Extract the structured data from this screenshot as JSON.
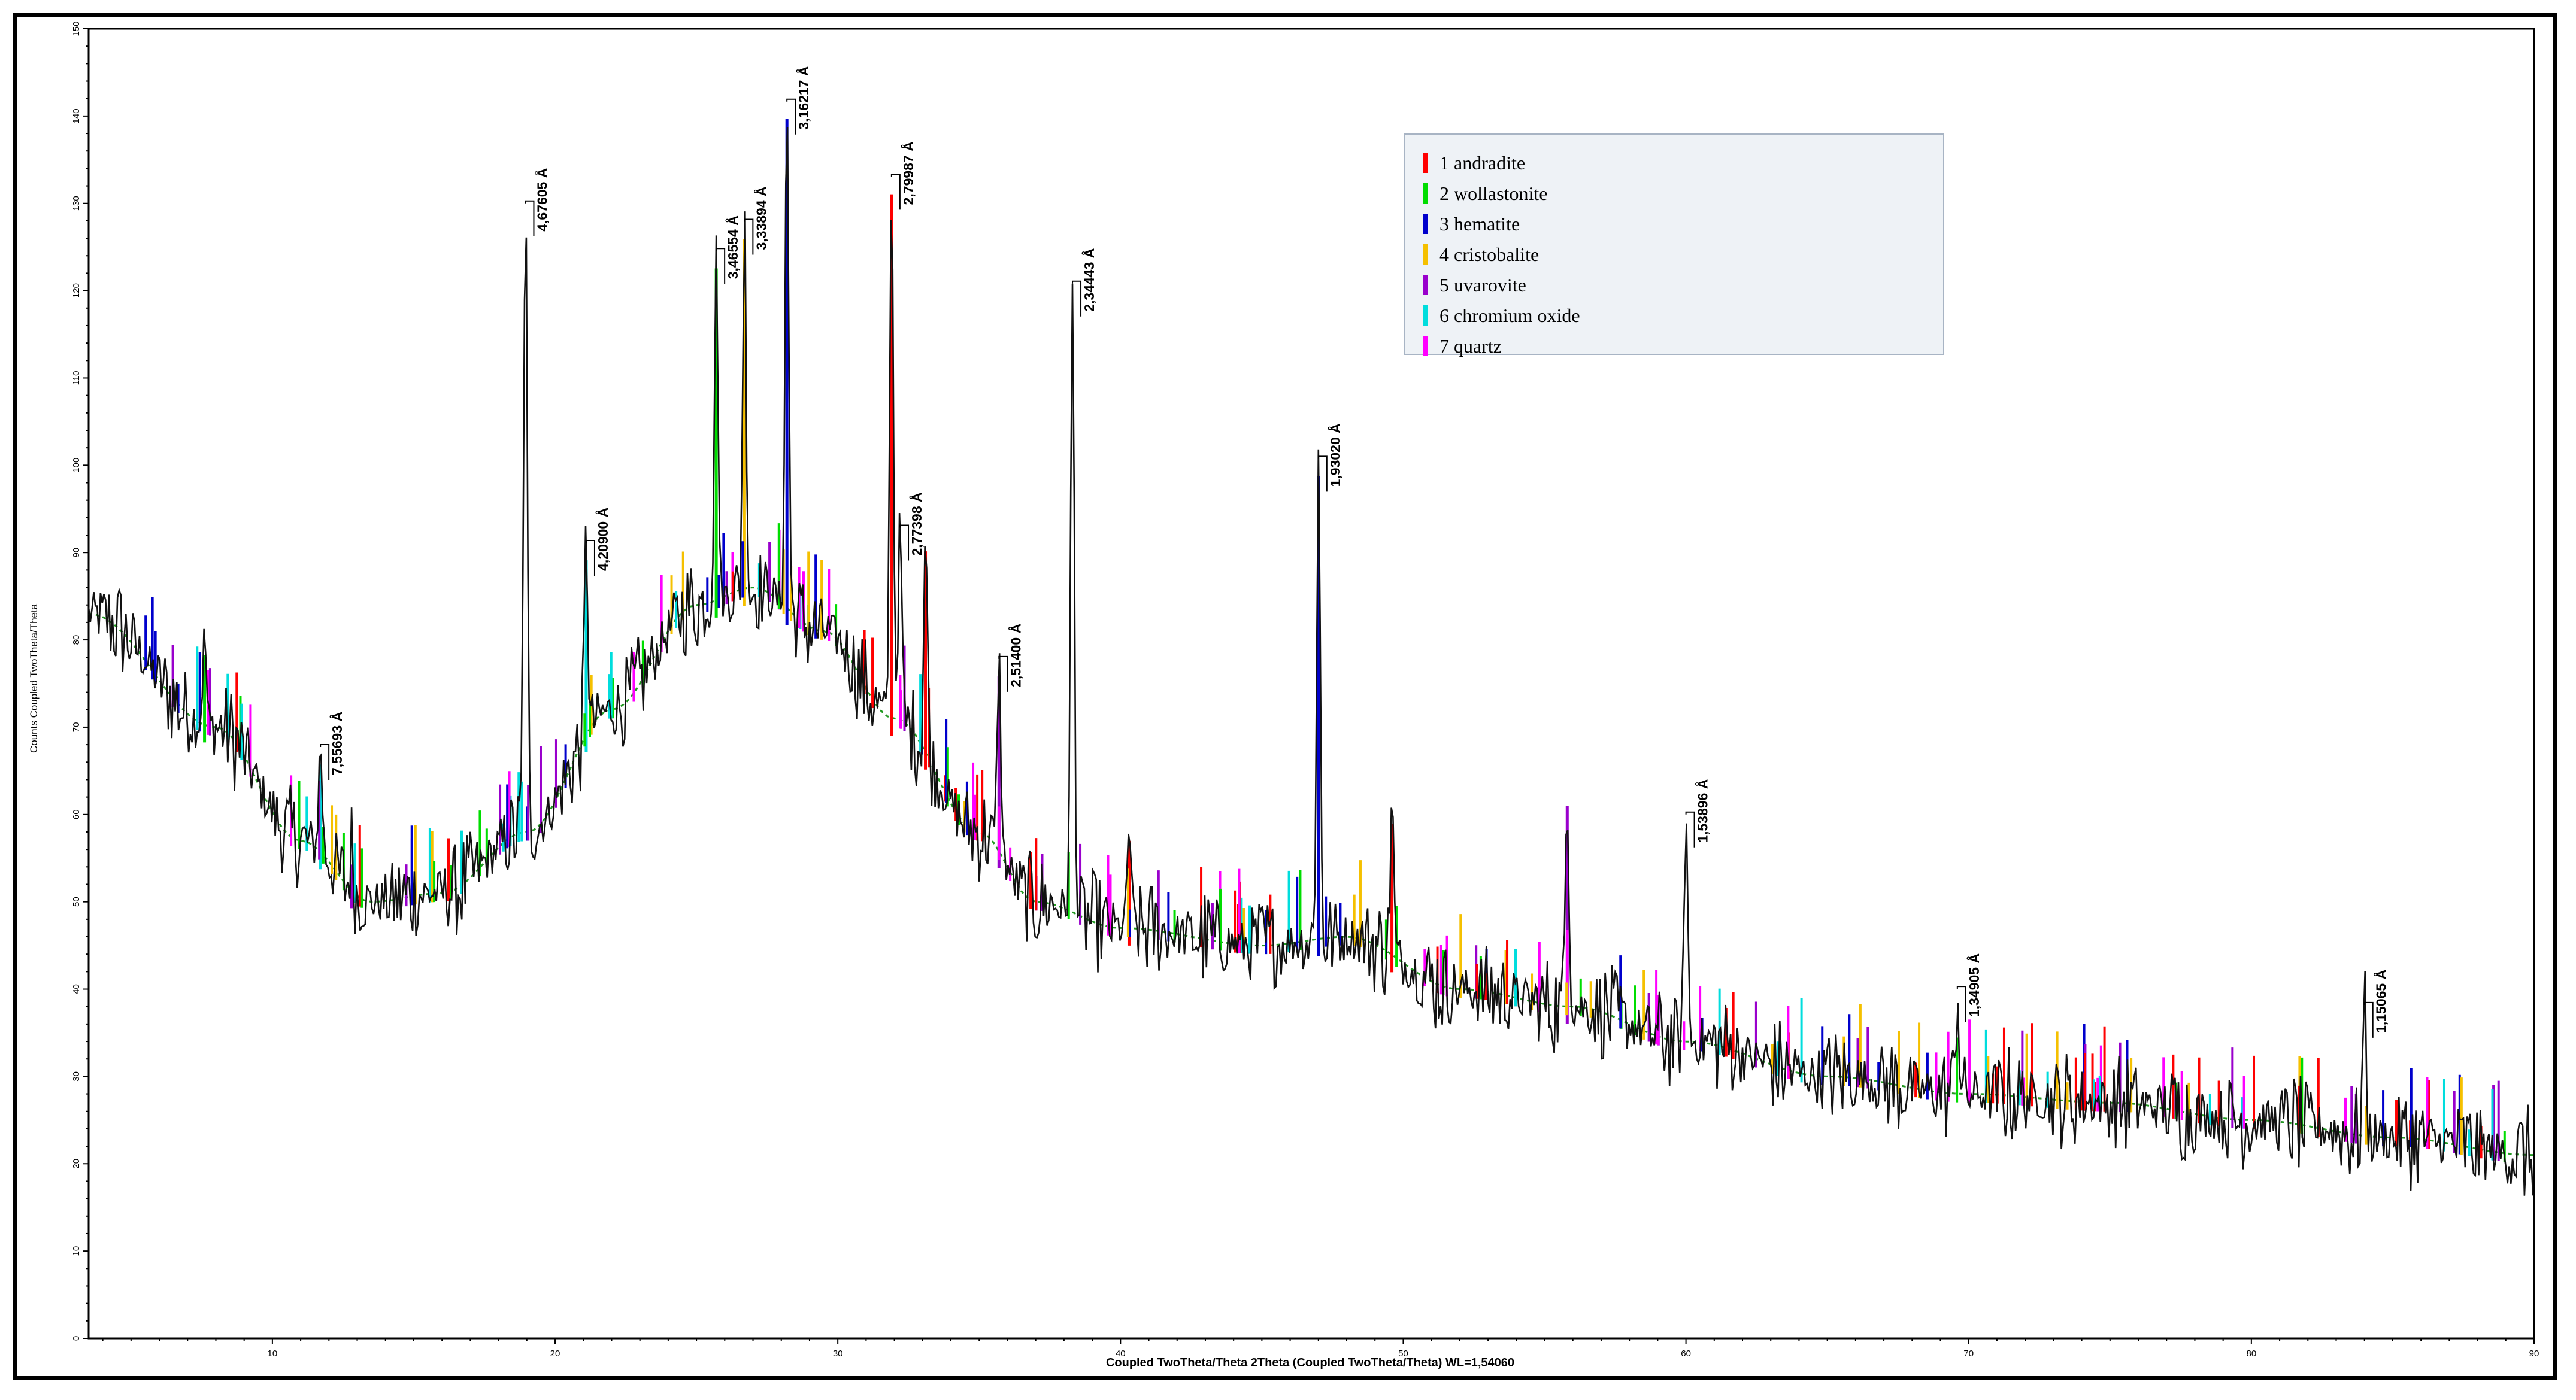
{
  "chart_data": {
    "type": "line",
    "title": "",
    "xlabel": "Coupled TwoTheta/Theta 2Theta (Coupled TwoTheta/Theta) WL=1,54060",
    "ylabel": "Counts Coupled TwoTheta/Theta",
    "xlim": [
      3.5,
      90
    ],
    "ylim": [
      0,
      150
    ],
    "x_ticks": [
      "10",
      "20",
      "30",
      "40",
      "50",
      "60",
      "70",
      "80",
      "90"
    ],
    "y_ticks": [
      "0",
      "10",
      "20",
      "30",
      "40",
      "50",
      "60",
      "70",
      "80",
      "90",
      "100",
      "110",
      "120",
      "130",
      "140",
      "150"
    ],
    "grid": false,
    "legend_position": "top-right",
    "phases": [
      {
        "id": 1,
        "name": "andradite",
        "color": "#ff0000"
      },
      {
        "id": 2,
        "name": "wollastonite",
        "color": "#00dd00"
      },
      {
        "id": 3,
        "name": "hematite",
        "color": "#0000cc"
      },
      {
        "id": 4,
        "name": "cristobalite",
        "color": "#f5c000"
      },
      {
        "id": 5,
        "name": "uvarovite",
        "color": "#9900cc"
      },
      {
        "id": 6,
        "name": "chromium oxide",
        "color": "#00dddd"
      },
      {
        "id": 7,
        "name": "quartz",
        "color": "#ff00ff"
      }
    ],
    "legend": [
      {
        "label": "1 andradite",
        "color": "#ff0000"
      },
      {
        "label": "2 wollastonite",
        "color": "#00dd00"
      },
      {
        "label": "3 hematite",
        "color": "#0000cc"
      },
      {
        "label": "4 cristobalite",
        "color": "#f5c000"
      },
      {
        "label": "5 uvarovite",
        "color": "#9900cc"
      },
      {
        "label": "6 chromium oxide",
        "color": "#00dddd"
      },
      {
        "label": "7 quartz",
        "color": "#ff00ff"
      }
    ],
    "background_curve": [
      [
        3.5,
        83
      ],
      [
        8,
        70
      ],
      [
        11,
        57
      ],
      [
        13.5,
        50
      ],
      [
        16,
        51
      ],
      [
        19,
        58
      ],
      [
        22,
        72
      ],
      [
        25,
        84
      ],
      [
        27,
        86
      ],
      [
        29.5,
        81
      ],
      [
        32,
        71
      ],
      [
        35,
        58
      ],
      [
        37,
        50
      ],
      [
        40,
        47
      ],
      [
        45,
        45
      ],
      [
        48,
        46
      ],
      [
        52,
        40
      ],
      [
        56,
        38
      ],
      [
        60,
        34
      ],
      [
        65,
        30
      ],
      [
        70,
        28
      ],
      [
        75,
        27
      ],
      [
        80,
        25
      ],
      [
        85,
        23
      ],
      [
        90,
        21
      ]
    ],
    "noise_amplitude": 6,
    "peaks": [
      {
        "x": 7.6,
        "height": 10,
        "phase": 2
      },
      {
        "x": 11.7,
        "height": 12,
        "phase": 6,
        "label": "7,55693 Å"
      },
      {
        "x": 12.8,
        "height": 5,
        "phase": 5
      },
      {
        "x": 18.95,
        "height": 72,
        "phase": 0,
        "label": "4,67605 Å"
      },
      {
        "x": 21.1,
        "height": 22,
        "phase": 6,
        "label": "4,20900 Å"
      },
      {
        "x": 25.7,
        "height": 40,
        "phase": 2,
        "label": "3,46554 Å"
      },
      {
        "x": 26.7,
        "height": 42,
        "phase": 4,
        "label": "3,33894 Å"
      },
      {
        "x": 28.2,
        "height": 58,
        "phase": 3,
        "label": "3,16217 Å"
      },
      {
        "x": 31.9,
        "height": 62,
        "phase": 1,
        "label": "2,79987 Å"
      },
      {
        "x": 32.2,
        "height": 22,
        "phase": 0,
        "label": "2,77398 Å"
      },
      {
        "x": 33.1,
        "height": 25,
        "phase": 1
      },
      {
        "x": 35.7,
        "height": 22,
        "phase": 5,
        "label": "2,51400 Å"
      },
      {
        "x": 38.3,
        "height": 72,
        "phase": 0,
        "label": "2,34443 Å"
      },
      {
        "x": 40.3,
        "height": 12,
        "phase": 1
      },
      {
        "x": 47.0,
        "height": 55,
        "phase": 3,
        "label": "1,93020 Å"
      },
      {
        "x": 49.6,
        "height": 17,
        "phase": 1
      },
      {
        "x": 55.8,
        "height": 25,
        "phase": 5
      },
      {
        "x": 60.0,
        "height": 26,
        "phase": 0,
        "label": "1,53896 Å"
      },
      {
        "x": 69.6,
        "height": 12,
        "phase": 0,
        "label": "1,34905 Å"
      },
      {
        "x": 84.0,
        "height": 15,
        "phase": 0,
        "label": "1,15065 Å"
      }
    ]
  }
}
